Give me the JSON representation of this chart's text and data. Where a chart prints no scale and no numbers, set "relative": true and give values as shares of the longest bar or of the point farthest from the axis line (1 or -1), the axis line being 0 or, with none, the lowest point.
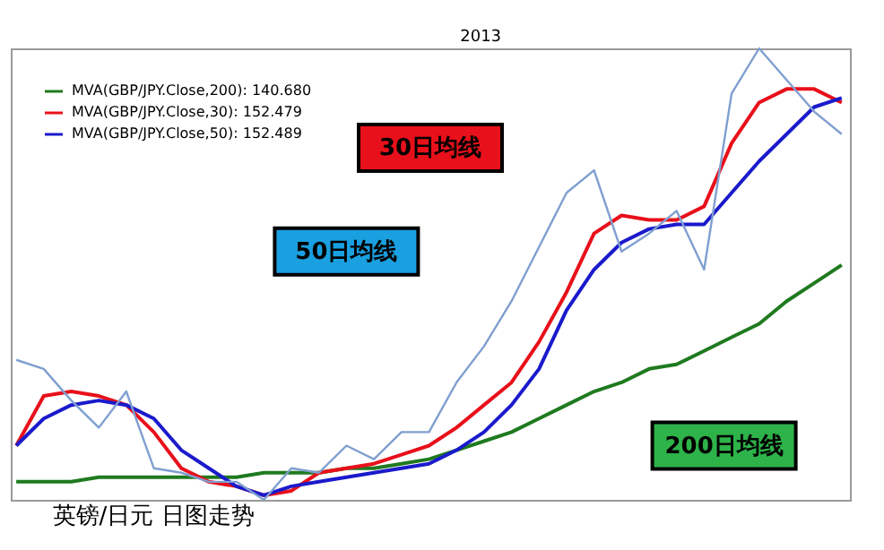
{
  "chart_data": {
    "type": "line",
    "relative": true,
    "legend": "top left",
    "categories": [
      null,
      null,
      null,
      null,
      null,
      null,
      null,
      null,
      null,
      null,
      null,
      null,
      null,
      null,
      null,
      null,
      null,
      null,
      null,
      null,
      null,
      null,
      null,
      null,
      null,
      null,
      null,
      null,
      null,
      null,
      null
    ],
    "series": [
      {
        "name": "MVA(GBP/JPY.Close,200): 140.680",
        "color": "#1f7a1f",
        "values": [
          0.04,
          0.04,
          0.04,
          0.05,
          0.05,
          0.05,
          0.05,
          0.05,
          0.05,
          0.06,
          0.06,
          0.06,
          0.07,
          0.07,
          0.08,
          0.09,
          0.11,
          0.13,
          0.15,
          0.18,
          0.21,
          0.24,
          0.26,
          0.29,
          0.3,
          0.33,
          0.36,
          0.39,
          0.44,
          0.48,
          0.52
        ]
      },
      {
        "name": "MVA(GBP/JPY.Close,30): 152.479",
        "color": "#e8101a",
        "values": [
          0.12,
          0.23,
          0.24,
          0.23,
          0.21,
          0.15,
          0.07,
          0.04,
          0.03,
          0.01,
          0.02,
          0.06,
          0.07,
          0.08,
          0.1,
          0.12,
          0.16,
          0.21,
          0.26,
          0.35,
          0.46,
          0.59,
          0.63,
          0.62,
          0.62,
          0.65,
          0.79,
          0.88,
          0.91,
          0.91,
          0.88
        ]
      },
      {
        "name": "MVA(GBP/JPY.Close,50): 152.489",
        "color": "#1a1acc",
        "values": [
          0.12,
          0.18,
          0.21,
          0.22,
          0.21,
          0.18,
          0.11,
          0.07,
          0.03,
          0.01,
          0.03,
          0.04,
          0.05,
          0.06,
          0.07,
          0.08,
          0.11,
          0.15,
          0.21,
          0.29,
          0.42,
          0.51,
          0.57,
          0.6,
          0.61,
          0.61,
          0.68,
          0.75,
          0.81,
          0.87,
          0.89
        ]
      },
      {
        "color": "#7f9fd0",
        "values": [
          0.31,
          0.29,
          0.22,
          0.16,
          0.24,
          0.07,
          0.06,
          0.04,
          0.04,
          0,
          0.07,
          0.06,
          0.12,
          0.09,
          0.15,
          0.15,
          0.26,
          0.34,
          0.44,
          0.56,
          0.68,
          0.73,
          0.55,
          0.59,
          0.64,
          0.51,
          0.9,
          1,
          0.93,
          0.86,
          0.81
        ]
      }
    ],
    "annotations": [
      "30日均线",
      "50日均线",
      "200日均线",
      "英镑/日元 日图走势",
      "2013"
    ]
  }
}
